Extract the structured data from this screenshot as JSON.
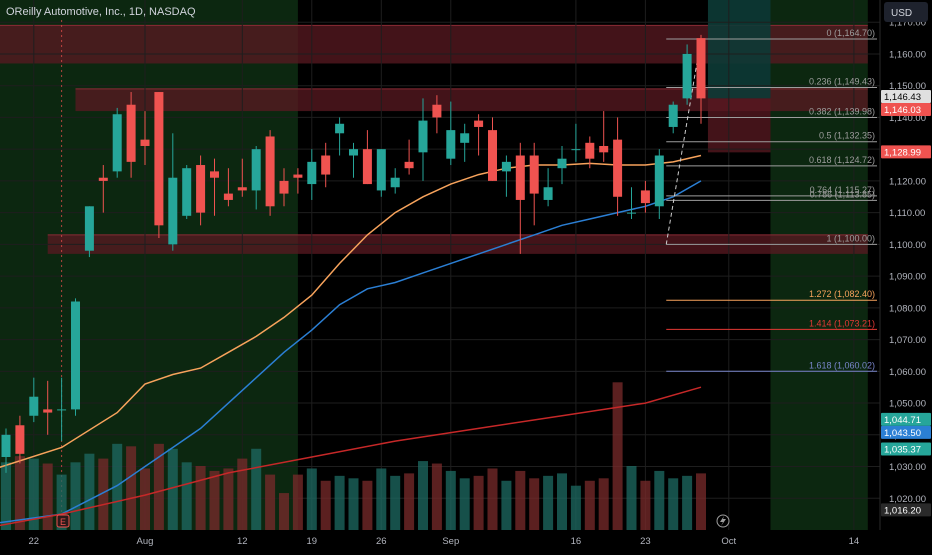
{
  "header": {
    "title": "OReilly Automotive, Inc., 1D, NASDAQ",
    "currency": "USD"
  },
  "colors": {
    "up": "#26a69a",
    "down": "#ef5350",
    "ma_fast": "#f7a35c",
    "ma_mid": "#2b7fd4",
    "ma_slow": "#c62828",
    "grid": "#1e1e1e",
    "axis_text": "#b2b5be",
    "green_zone": "#0d2b12",
    "red_zone": "#5a1a22",
    "fib_line": "#9e9e9e"
  },
  "chart_data": {
    "type": "candlestick",
    "title": "OReilly Automotive, Inc., 1D, NASDAQ",
    "ylim": [
      1010,
      1177
    ],
    "y_ticks": [
      "1,170.00",
      "1,160.00",
      "1,150.00",
      "1,140.00",
      "1,130.00",
      "1,120.00",
      "1,110.00",
      "1,100.00",
      "1,090.00",
      "1,080.00",
      "1,070.00",
      "1,060.00",
      "1,050.00",
      "1,040.00",
      "1,030.00",
      "1,020.00"
    ],
    "y_tick_values": [
      1170,
      1160,
      1150,
      1140,
      1130,
      1120,
      1110,
      1100,
      1090,
      1080,
      1070,
      1060,
      1050,
      1040,
      1030,
      1020
    ],
    "x_ticks": [
      {
        "label": "22",
        "bar": 2
      },
      {
        "label": "Aug",
        "bar": 10
      },
      {
        "label": "12",
        "bar": 17
      },
      {
        "label": "19",
        "bar": 22
      },
      {
        "label": "26",
        "bar": 27
      },
      {
        "label": "Sep",
        "bar": 32
      },
      {
        "label": "16",
        "bar": 41
      },
      {
        "label": "23",
        "bar": 46
      },
      {
        "label": "Oct",
        "bar": 52
      },
      {
        "label": "14",
        "bar": 61
      }
    ],
    "price_labels": [
      {
        "text": "1,146.43",
        "value": 1146.43,
        "color": "#e0e0e0",
        "text_color": "#000000"
      },
      {
        "text": "1,146.03",
        "value": 1146.03,
        "color": "#ef5350",
        "text_color": "#ffffff"
      },
      {
        "text": "1,128.99",
        "value": 1128.99,
        "color": "#ef5350",
        "text_color": "#ffffff"
      },
      {
        "text": "1,044.71",
        "value": 1044.71,
        "color": "#26a69a",
        "text_color": "#ffffff"
      },
      {
        "text": "1,043.50",
        "value": 1043.5,
        "color": "#2b7fd4",
        "text_color": "#ffffff"
      },
      {
        "text": "1,035.37",
        "value": 1035.37,
        "color": "#26a69a",
        "text_color": "#ffffff"
      },
      {
        "text": "1,016.20",
        "value": 1016.2,
        "color": "#2a2a2a",
        "text_color": "#ffffff"
      }
    ],
    "candles": [
      {
        "o": 1033,
        "h": 1042,
        "l": 1028,
        "c": 1040
      },
      {
        "o": 1043,
        "h": 1046,
        "l": 1031,
        "c": 1034
      },
      {
        "o": 1046,
        "h": 1058,
        "l": 1044,
        "c": 1052
      },
      {
        "o": 1048,
        "h": 1057,
        "l": 1040,
        "c": 1047
      },
      {
        "o": 1048,
        "h": 1058,
        "l": 1038,
        "c": 1048
      },
      {
        "o": 1048,
        "h": 1083,
        "l": 1046,
        "c": 1082
      },
      {
        "o": 1098,
        "h": 1112,
        "l": 1096,
        "c": 1112
      },
      {
        "o": 1121,
        "h": 1125,
        "l": 1110,
        "c": 1120
      },
      {
        "o": 1123,
        "h": 1143,
        "l": 1121,
        "c": 1141
      },
      {
        "o": 1144,
        "h": 1148,
        "l": 1121,
        "c": 1126
      },
      {
        "o": 1133,
        "h": 1142,
        "l": 1125,
        "c": 1131
      },
      {
        "o": 1148,
        "h": 1148,
        "l": 1102,
        "c": 1106
      },
      {
        "o": 1100,
        "h": 1135,
        "l": 1098,
        "c": 1121
      },
      {
        "o": 1109,
        "h": 1125,
        "l": 1108,
        "c": 1124
      },
      {
        "o": 1125,
        "h": 1128,
        "l": 1106,
        "c": 1110
      },
      {
        "o": 1123,
        "h": 1127,
        "l": 1109,
        "c": 1121
      },
      {
        "o": 1116,
        "h": 1124,
        "l": 1112,
        "c": 1114
      },
      {
        "o": 1118,
        "h": 1127,
        "l": 1115,
        "c": 1117
      },
      {
        "o": 1117,
        "h": 1131,
        "l": 1111,
        "c": 1130
      },
      {
        "o": 1134,
        "h": 1136,
        "l": 1109,
        "c": 1112
      },
      {
        "o": 1120,
        "h": 1124,
        "l": 1112,
        "c": 1116
      },
      {
        "o": 1122,
        "h": 1124,
        "l": 1116,
        "c": 1121
      },
      {
        "o": 1119,
        "h": 1130,
        "l": 1114,
        "c": 1126
      },
      {
        "o": 1128,
        "h": 1132,
        "l": 1118,
        "c": 1122
      },
      {
        "o": 1135,
        "h": 1140,
        "l": 1128,
        "c": 1138
      },
      {
        "o": 1128,
        "h": 1132,
        "l": 1121,
        "c": 1130
      },
      {
        "o": 1130,
        "h": 1136,
        "l": 1119,
        "c": 1119
      },
      {
        "o": 1117,
        "h": 1130,
        "l": 1115,
        "c": 1130
      },
      {
        "o": 1118,
        "h": 1124,
        "l": 1116,
        "c": 1121
      },
      {
        "o": 1126,
        "h": 1133,
        "l": 1122,
        "c": 1124
      },
      {
        "o": 1129,
        "h": 1146,
        "l": 1120,
        "c": 1139
      },
      {
        "o": 1144,
        "h": 1147,
        "l": 1135,
        "c": 1140
      },
      {
        "o": 1127,
        "h": 1145,
        "l": 1125,
        "c": 1136
      },
      {
        "o": 1132,
        "h": 1138,
        "l": 1126,
        "c": 1135
      },
      {
        "o": 1139,
        "h": 1141,
        "l": 1128,
        "c": 1137
      },
      {
        "o": 1136,
        "h": 1140,
        "l": 1120,
        "c": 1120
      },
      {
        "o": 1123,
        "h": 1128,
        "l": 1115,
        "c": 1126
      },
      {
        "o": 1128,
        "h": 1132,
        "l": 1097,
        "c": 1114
      },
      {
        "o": 1128,
        "h": 1132,
        "l": 1106,
        "c": 1116
      },
      {
        "o": 1114,
        "h": 1124,
        "l": 1112,
        "c": 1118
      },
      {
        "o": 1124,
        "h": 1131,
        "l": 1119,
        "c": 1127
      },
      {
        "o": 1130,
        "h": 1138,
        "l": 1126,
        "c": 1130
      },
      {
        "o": 1132,
        "h": 1134,
        "l": 1124,
        "c": 1127
      },
      {
        "o": 1131,
        "h": 1142,
        "l": 1126,
        "c": 1129
      },
      {
        "o": 1133,
        "h": 1140,
        "l": 1109,
        "c": 1115
      },
      {
        "o": 1110,
        "h": 1118,
        "l": 1108,
        "c": 1110
      },
      {
        "o": 1117,
        "h": 1120,
        "l": 1110,
        "c": 1113
      },
      {
        "o": 1112,
        "h": 1130,
        "l": 1108,
        "c": 1128
      },
      {
        "o": 1137,
        "h": 1145,
        "l": 1135,
        "c": 1144
      },
      {
        "o": 1146,
        "h": 1163,
        "l": 1144,
        "c": 1160
      },
      {
        "o": 1165,
        "h": 1166,
        "l": 1138,
        "c": 1146
      }
    ],
    "series": [
      {
        "name": "MA fast",
        "color": "#f7a35c",
        "points": [
          [
            -1,
            1029
          ],
          [
            4,
            1036
          ],
          [
            8,
            1047
          ],
          [
            10,
            1056
          ],
          [
            12,
            1059
          ],
          [
            14,
            1061
          ],
          [
            16,
            1066
          ],
          [
            18,
            1071
          ],
          [
            20,
            1077
          ],
          [
            22,
            1084
          ],
          [
            24,
            1094
          ],
          [
            26,
            1103
          ],
          [
            28,
            1110
          ],
          [
            30,
            1115
          ],
          [
            32,
            1119
          ],
          [
            34,
            1122
          ],
          [
            36,
            1124
          ],
          [
            38,
            1125
          ],
          [
            40,
            1125
          ],
          [
            42,
            1125.5
          ],
          [
            44,
            1125
          ],
          [
            46,
            1125
          ],
          [
            48,
            1126
          ],
          [
            50,
            1128
          ]
        ]
      },
      {
        "name": "MA mid",
        "color": "#2b7fd4",
        "points": [
          [
            -1,
            1012
          ],
          [
            4,
            1015
          ],
          [
            8,
            1024
          ],
          [
            10,
            1030
          ],
          [
            12,
            1036
          ],
          [
            14,
            1042
          ],
          [
            16,
            1050
          ],
          [
            18,
            1058
          ],
          [
            20,
            1066
          ],
          [
            22,
            1073
          ],
          [
            24,
            1081
          ],
          [
            26,
            1086
          ],
          [
            28,
            1088
          ],
          [
            30,
            1091
          ],
          [
            32,
            1094
          ],
          [
            34,
            1097
          ],
          [
            36,
            1100
          ],
          [
            38,
            1103
          ],
          [
            40,
            1106
          ],
          [
            42,
            1108
          ],
          [
            44,
            1110
          ],
          [
            46,
            1112
          ],
          [
            48,
            1115
          ],
          [
            50,
            1120
          ]
        ]
      },
      {
        "name": "MA slow",
        "color": "#c62828",
        "points": [
          [
            -1,
            1011
          ],
          [
            4,
            1015
          ],
          [
            10,
            1021
          ],
          [
            16,
            1028
          ],
          [
            22,
            1033
          ],
          [
            28,
            1038
          ],
          [
            34,
            1042
          ],
          [
            40,
            1046
          ],
          [
            46,
            1050
          ],
          [
            50,
            1055
          ]
        ]
      }
    ],
    "fib_levels": [
      {
        "label": "0 (1,164.70)",
        "value": 1164.7,
        "color": "#9e9e9e"
      },
      {
        "label": "0.236 (1,149.43)",
        "value": 1149.43,
        "color": "#9e9e9e"
      },
      {
        "label": "0.382 (1,139.98)",
        "value": 1139.98,
        "color": "#9e9e9e"
      },
      {
        "label": "0.5 (1,132.35)",
        "value": 1132.35,
        "color": "#9e9e9e"
      },
      {
        "label": "0.618 (1,124.72)",
        "value": 1124.72,
        "color": "#9e9e9e"
      },
      {
        "label": "0.764 (1,115.27)",
        "value": 1115.27,
        "color": "#9e9e9e"
      },
      {
        "label": "0.786 (1,113.85)",
        "value": 1113.85,
        "color": "#9e9e9e"
      },
      {
        "label": "1 (1,100.00)",
        "value": 1100.0,
        "color": "#9e9e9e"
      },
      {
        "label": "1.272 (1,082.40)",
        "value": 1082.4,
        "color": "#f7a35c"
      },
      {
        "label": "1.414 (1,073.21)",
        "value": 1073.21,
        "color": "#e53935"
      },
      {
        "label": "1.618 (1,060.02)",
        "value": 1060.02,
        "color": "#7986cb"
      }
    ],
    "zones": [
      {
        "type": "red",
        "from_bar": -1,
        "to_bar": 62,
        "low": 1157,
        "high": 1169
      },
      {
        "type": "red",
        "from_bar": 5,
        "to_bar": 62,
        "low": 1142,
        "high": 1149
      },
      {
        "type": "red",
        "from_bar": 3,
        "to_bar": 62,
        "low": 1097,
        "high": 1103
      },
      {
        "type": "green",
        "from_bar": -1,
        "to_bar": 21,
        "low": 1010,
        "high": 1177
      },
      {
        "type": "green",
        "from_bar": 55,
        "to_bar": 62,
        "low": 1010,
        "high": 1177
      },
      {
        "type": "teal",
        "from_bar": 50.5,
        "to_bar": 55,
        "low": 1146,
        "high": 1177
      },
      {
        "type": "red",
        "from_bar": 50.5,
        "to_bar": 55,
        "low": 1128.99,
        "high": 1146
      }
    ],
    "volumes": [
      55,
      60,
      58,
      54,
      45,
      55,
      62,
      58,
      70,
      68,
      50,
      70,
      66,
      55,
      52,
      48,
      50,
      58,
      66,
      45,
      30,
      45,
      50,
      40,
      44,
      42,
      40,
      50,
      44,
      46,
      56,
      54,
      48,
      42,
      44,
      50,
      40,
      48,
      42,
      44,
      46,
      36,
      40,
      42,
      120,
      52,
      40,
      48,
      42,
      44,
      46
    ]
  }
}
